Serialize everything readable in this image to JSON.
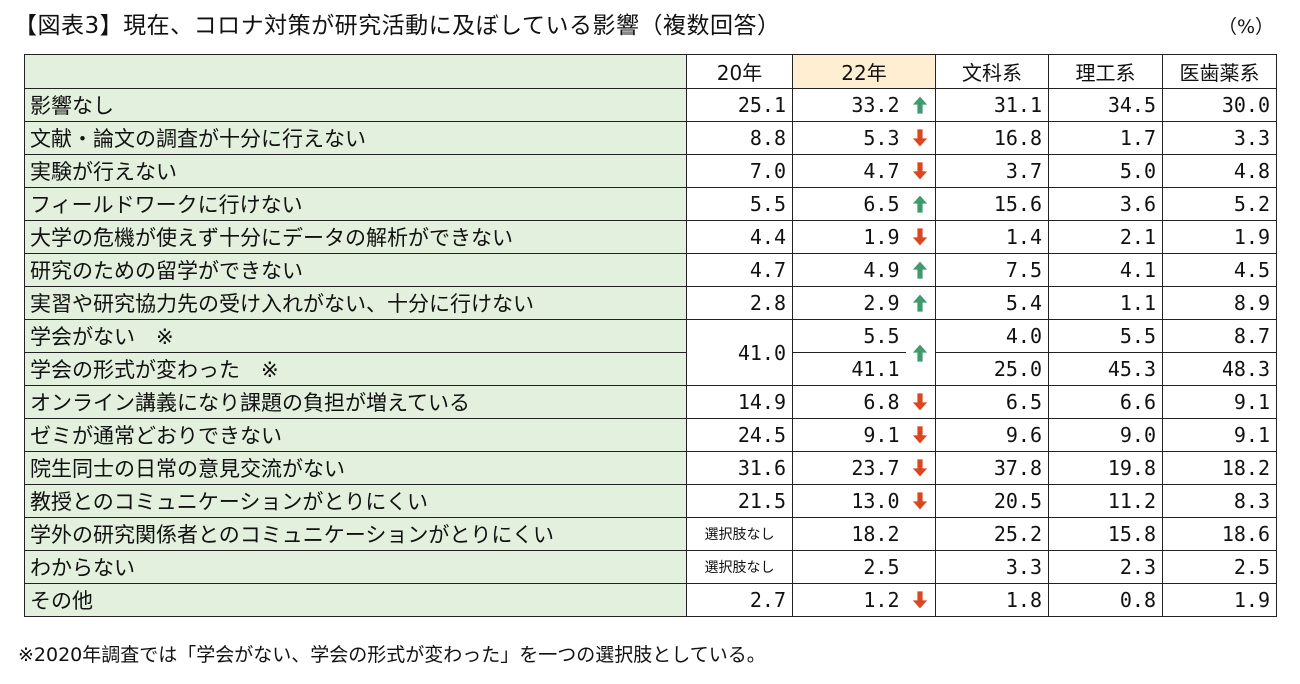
{
  "title": "【図表3】現在、コロナ対策が研究活動に及ぼしている影響（複数回答）",
  "unit": "（%）",
  "colors": {
    "label_bg": "#e3f0dd",
    "header_22_bg": "#ffeed1",
    "arrow_up": "#3f9a6d",
    "arrow_down": "#d8471f"
  },
  "columns": {
    "y20": "20年",
    "y22": "22年",
    "bunka": "文科系",
    "riko": "理工系",
    "iyaku": "医歯薬系"
  },
  "rows": [
    {
      "label": "影響なし",
      "y20": "25.1",
      "y22": "33.2",
      "trend": "up",
      "bunka": "31.1",
      "riko": "34.5",
      "iyaku": "30.0"
    },
    {
      "label": "文献・論文の調査が十分に行えない",
      "y20": "8.8",
      "y22": "5.3",
      "trend": "down",
      "bunka": "16.8",
      "riko": "1.7",
      "iyaku": "3.3"
    },
    {
      "label": "実験が行えない",
      "y20": "7.0",
      "y22": "4.7",
      "trend": "down",
      "bunka": "3.7",
      "riko": "5.0",
      "iyaku": "4.8"
    },
    {
      "label": "フィールドワークに行けない",
      "y20": "5.5",
      "y22": "6.5",
      "trend": "up",
      "bunka": "15.6",
      "riko": "3.6",
      "iyaku": "5.2"
    },
    {
      "label": "大学の危機が使えず十分にデータの解析ができない",
      "y20": "4.4",
      "y22": "1.9",
      "trend": "down",
      "bunka": "1.4",
      "riko": "2.1",
      "iyaku": "1.9"
    },
    {
      "label": "研究のための留学ができない",
      "y20": "4.7",
      "y22": "4.9",
      "trend": "up",
      "bunka": "7.5",
      "riko": "4.1",
      "iyaku": "4.5"
    },
    {
      "label": "実習や研究協力先の受け入れがない、十分に行けない",
      "y20": "2.8",
      "y22": "2.9",
      "trend": "up",
      "bunka": "5.4",
      "riko": "1.1",
      "iyaku": "8.9"
    },
    {
      "label": "学会がない　※",
      "y20": "41.0",
      "y22": "5.5",
      "trend": "up",
      "bunka": "4.0",
      "riko": "5.5",
      "iyaku": "8.7"
    },
    {
      "label": "学会の形式が変わった　※",
      "y22": "41.1",
      "bunka": "25.0",
      "riko": "45.3",
      "iyaku": "48.3"
    },
    {
      "label": "オンライン講義になり課題の負担が増えている",
      "y20": "14.9",
      "y22": "6.8",
      "trend": "down",
      "bunka": "6.5",
      "riko": "6.6",
      "iyaku": "9.1"
    },
    {
      "label": "ゼミが通常どおりできない",
      "y20": "24.5",
      "y22": "9.1",
      "trend": "down",
      "bunka": "9.6",
      "riko": "9.0",
      "iyaku": "9.1"
    },
    {
      "label": "院生同士の日常の意見交流がない",
      "y20": "31.6",
      "y22": "23.7",
      "trend": "down",
      "bunka": "37.8",
      "riko": "19.8",
      "iyaku": "18.2"
    },
    {
      "label": "教授とのコミュニケーションがとりにくい",
      "y20": "21.5",
      "y22": "13.0",
      "trend": "down",
      "bunka": "20.5",
      "riko": "11.2",
      "iyaku": "8.3"
    },
    {
      "label": "学外の研究関係者とのコミュニケーションがとりにくい",
      "y20": "選択肢なし",
      "y22": "18.2",
      "trend": "",
      "bunka": "25.2",
      "riko": "15.8",
      "iyaku": "18.6"
    },
    {
      "label": "わからない",
      "y20": "選択肢なし",
      "y22": "2.5",
      "trend": "",
      "bunka": "3.3",
      "riko": "2.3",
      "iyaku": "2.5"
    },
    {
      "label": "その他",
      "y20": "2.7",
      "y22": "1.2",
      "trend": "down",
      "bunka": "1.8",
      "riko": "0.8",
      "iyaku": "1.9"
    }
  ],
  "note": "※2020年調査では「学会がない、学会の形式が変わった」を一つの選択肢としている。"
}
